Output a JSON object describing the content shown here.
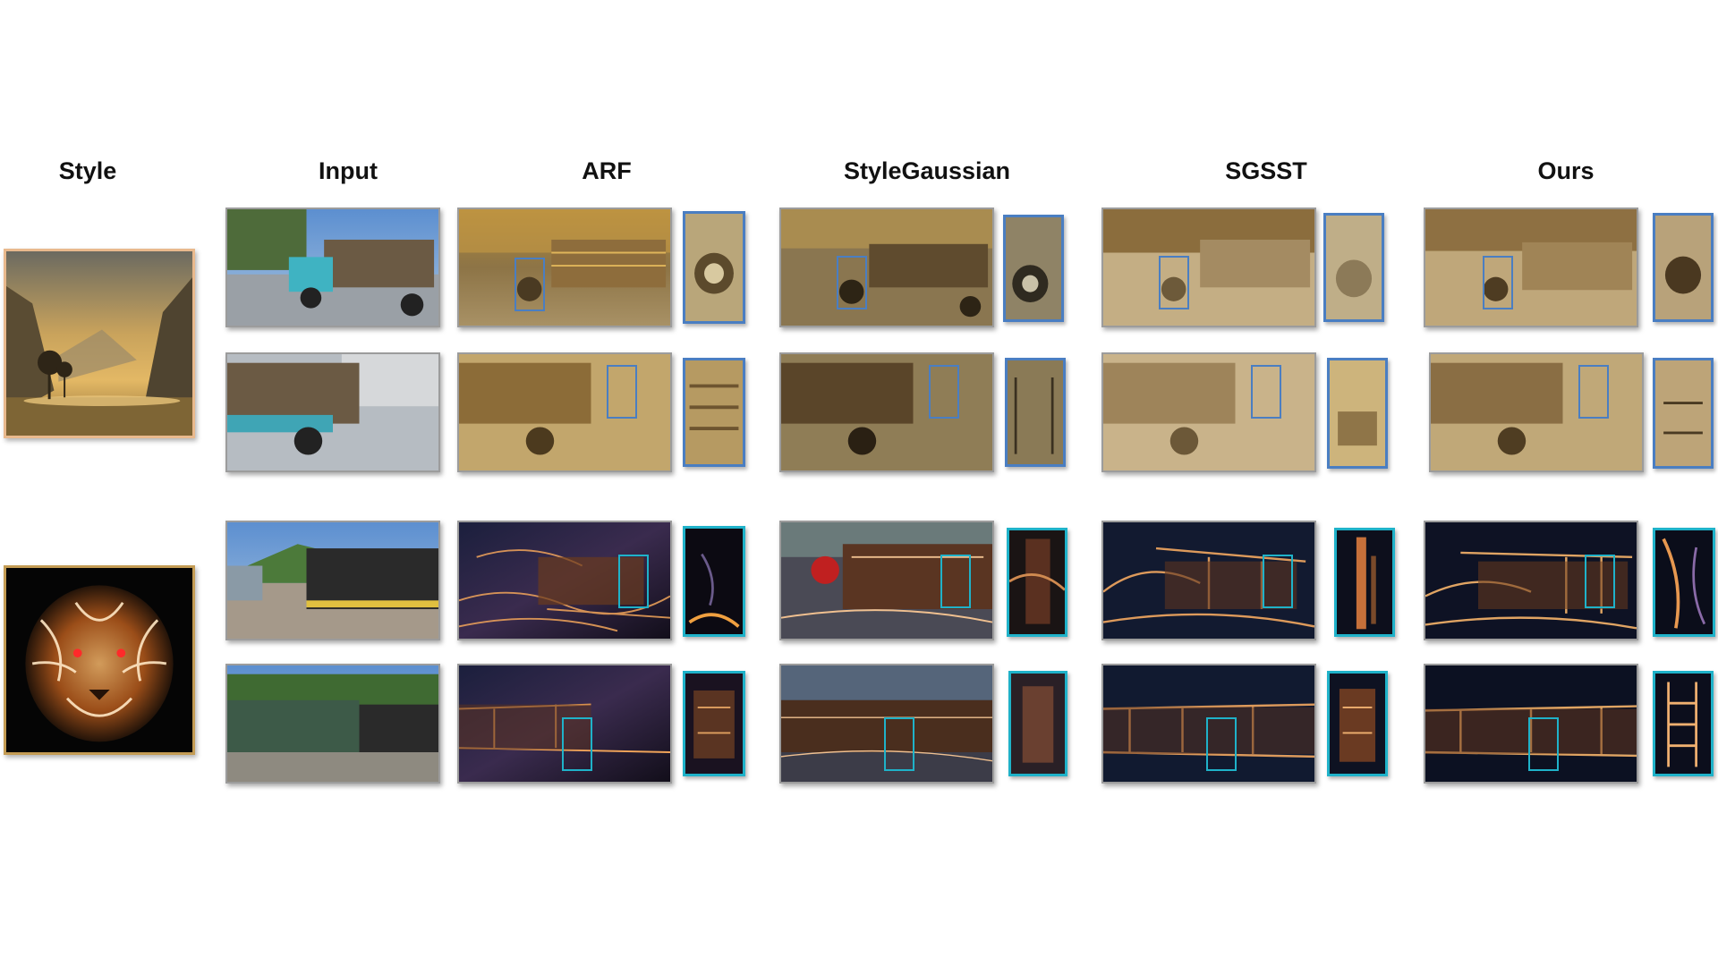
{
  "headers": {
    "style": "Style",
    "input": "Input",
    "arf": "ARF",
    "stylegaussian": "StyleGaussian",
    "sgsst": "SGSST",
    "ours": "Ours"
  },
  "images": {
    "style_1": "landscape-painting",
    "style_2": "neon-tiger",
    "scene_1": "truck",
    "scene_2": "train"
  },
  "colors": {
    "zoom_box_truck": "#4a7ec2",
    "zoom_box_train": "#1fb2c9"
  }
}
